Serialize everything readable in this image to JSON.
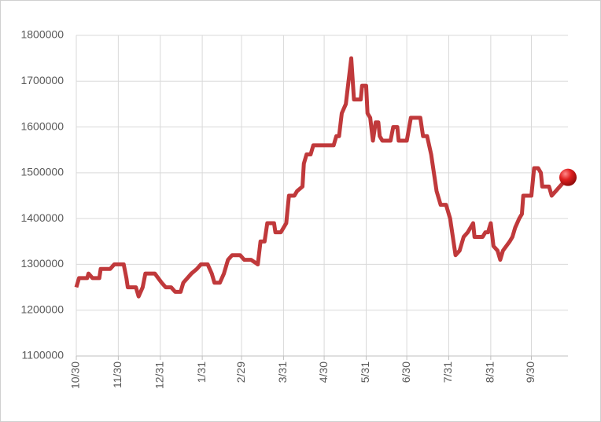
{
  "chart_data": {
    "type": "line",
    "x": [
      0,
      2,
      8,
      9,
      12,
      17,
      18,
      25,
      28,
      35,
      37,
      38,
      44,
      46,
      49,
      51,
      58,
      63,
      66,
      70,
      73,
      77,
      79,
      82,
      85,
      89,
      92,
      97,
      100,
      102,
      106,
      109,
      112,
      115,
      121,
      124,
      129,
      134,
      136,
      139,
      141,
      146,
      147,
      151,
      155,
      157,
      161,
      163,
      167,
      168,
      170,
      173,
      175,
      187,
      190,
      192,
      194,
      196,
      199,
      201,
      203,
      205,
      210,
      211,
      214,
      215,
      217,
      219,
      221,
      223,
      224,
      226,
      232,
      234,
      237,
      238,
      244,
      247,
      254,
      256,
      259,
      262,
      264,
      266,
      269,
      273,
      276,
      278,
      280,
      283,
      286,
      289,
      293,
      294,
      300,
      302,
      304,
      306,
      308,
      311,
      313,
      315,
      320,
      322,
      324,
      327,
      329,
      330,
      336,
      338,
      341,
      343,
      344,
      349,
      351,
      354,
      357,
      363
    ],
    "series": [
      {
        "name": null,
        "color": "#c0393b",
        "values": [
          1250000,
          1270000,
          1270000,
          1280000,
          1270000,
          1270000,
          1290000,
          1290000,
          1300000,
          1300000,
          1270000,
          1250000,
          1250000,
          1230000,
          1250000,
          1280000,
          1280000,
          1260000,
          1250000,
          1250000,
          1240000,
          1240000,
          1260000,
          1270000,
          1280000,
          1290000,
          1300000,
          1300000,
          1280000,
          1260000,
          1260000,
          1280000,
          1310000,
          1320000,
          1320000,
          1310000,
          1310000,
          1300000,
          1350000,
          1350000,
          1390000,
          1390000,
          1370000,
          1370000,
          1390000,
          1450000,
          1450000,
          1460000,
          1470000,
          1520000,
          1540000,
          1540000,
          1560000,
          1560000,
          1560000,
          1580000,
          1580000,
          1630000,
          1650000,
          1700000,
          1750000,
          1660000,
          1660000,
          1690000,
          1690000,
          1630000,
          1620000,
          1570000,
          1610000,
          1610000,
          1580000,
          1570000,
          1570000,
          1600000,
          1600000,
          1570000,
          1570000,
          1620000,
          1620000,
          1580000,
          1580000,
          1540000,
          1500000,
          1460000,
          1430000,
          1430000,
          1400000,
          1360000,
          1320000,
          1330000,
          1360000,
          1370000,
          1390000,
          1360000,
          1360000,
          1370000,
          1370000,
          1390000,
          1340000,
          1330000,
          1310000,
          1330000,
          1350000,
          1360000,
          1380000,
          1400000,
          1410000,
          1450000,
          1450000,
          1510000,
          1510000,
          1500000,
          1470000,
          1470000,
          1450000,
          1460000,
          1470000,
          1490000
        ]
      }
    ],
    "xlim": [
      0,
      363
    ],
    "xticks": [
      {
        "value": 0,
        "label": "10/30"
      },
      {
        "value": 31,
        "label": "11/30"
      },
      {
        "value": 62,
        "label": "12/31"
      },
      {
        "value": 93,
        "label": "1/31"
      },
      {
        "value": 122,
        "label": "2/29"
      },
      {
        "value": 153,
        "label": "3/31"
      },
      {
        "value": 183,
        "label": "4/30"
      },
      {
        "value": 214,
        "label": "5/31"
      },
      {
        "value": 244,
        "label": "6/30"
      },
      {
        "value": 275,
        "label": "7/31"
      },
      {
        "value": 306,
        "label": "8/31"
      },
      {
        "value": 336,
        "label": "9/30"
      }
    ],
    "ylim": [
      1100000,
      1800000
    ],
    "yticks": [
      1100000,
      1200000,
      1300000,
      1400000,
      1500000,
      1600000,
      1700000,
      1800000
    ],
    "grid": true,
    "end_marker": true
  }
}
